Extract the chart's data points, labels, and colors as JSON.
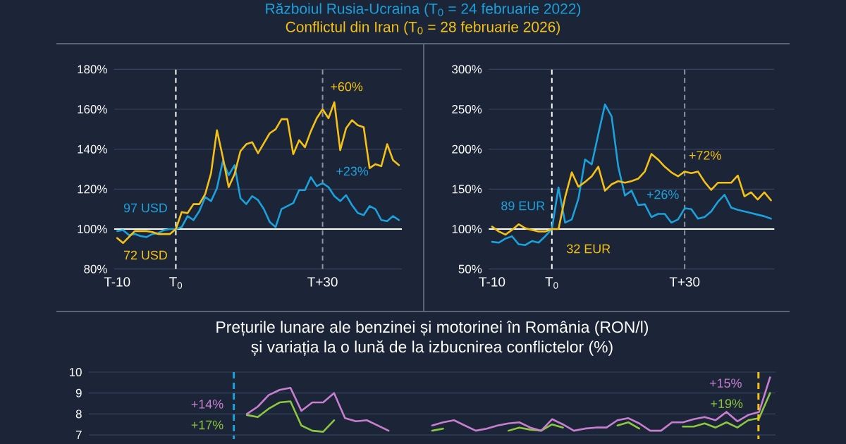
{
  "chart_data": [
    {
      "type": "line",
      "categories": [
        "T-10",
        null,
        null,
        null,
        null,
        null,
        null,
        null,
        null,
        null,
        "T$_{0}$",
        null,
        null,
        null,
        null,
        null,
        null,
        null,
        null,
        null,
        null,
        null,
        null,
        null,
        null,
        null,
        null,
        null,
        null,
        null,
        null,
        null,
        null,
        null,
        null,
        "T+30",
        null,
        null,
        null,
        null,
        null,
        null,
        null,
        null,
        null,
        null,
        null,
        null,
        null
      ],
      "series": [
        {
          "name": "Războiul Rusia-Ucraina (T$_{0}$ = 24 februarie 2022)",
          "color": "#1ba1dc",
          "values": [
            99,
            99.5,
            97,
            97.5,
            96.5,
            96,
            97.5,
            98,
            99.5,
            100,
            100,
            101,
            106.5,
            104.5,
            109,
            116,
            114,
            120.5,
            134,
            127,
            132,
            115.5,
            112.5,
            116.5,
            114.5,
            110,
            103.5,
            101,
            110,
            111.5,
            113,
            119.5,
            119.5,
            126,
            121.5,
            123,
            121,
            116.5,
            114,
            117,
            112,
            108,
            107,
            111.5,
            110,
            104.5,
            104,
            106.5,
            104.5
          ]
        },
        {
          "name": "Conflictul din Iran (T$_{0}$ = 28 februarie 2026)",
          "color": "#f5c116",
          "values": [
            95.5,
            93,
            96,
            99,
            99,
            99,
            98.5,
            97.5,
            97.5,
            97.5,
            100,
            108.5,
            108,
            112.5,
            112.5,
            117.5,
            128,
            149.5,
            136,
            121,
            127.5,
            139,
            142.5,
            143.5,
            138,
            143,
            148,
            150,
            155,
            155,
            137.5,
            144.5,
            141,
            149,
            155.5,
            160,
            155.5,
            163.5,
            139.5,
            150.5,
            154.5,
            152,
            151,
            130.5,
            132.5,
            131.5,
            142.5,
            134.5,
            132
          ]
        }
      ],
      "ylim": [
        80,
        180
      ],
      "yticks": [
        {
          "value": 80,
          "label": "80%"
        },
        {
          "value": 100,
          "label": "100%"
        },
        {
          "value": 120,
          "label": "120%"
        },
        {
          "value": 140,
          "label": "140%"
        },
        {
          "value": 160,
          "label": "160%"
        },
        {
          "value": 180,
          "label": "180%"
        }
      ],
      "grid": "y",
      "legend": "top",
      "ref_lines": [
        {
          "axis": "y",
          "value": 100,
          "color": "#ffffff"
        },
        {
          "axis": "x",
          "value": "T$_{0}$",
          "color": "#ffffff",
          "line_style": "dashed"
        },
        {
          "axis": "x",
          "value": "T+30",
          "color": "#8c94a3",
          "line_style": "dashed"
        }
      ],
      "annotations": [
        {
          "text": "97 USD",
          "x": "T$_{0}$",
          "y": 100
        },
        {
          "text": "72 USD",
          "x": "T$_{0}$",
          "y": 100
        },
        {
          "text": "+60%",
          "x": "T+30",
          "y": 160
        },
        {
          "text": "+23%",
          "x": "T+30",
          "y": 123
        }
      ]
    },
    {
      "type": "line",
      "categories": [
        "T-10",
        null,
        null,
        null,
        null,
        null,
        null,
        null,
        null,
        "T$_{0}$",
        null,
        null,
        null,
        null,
        null,
        null,
        null,
        null,
        null,
        null,
        null,
        null,
        null,
        null,
        null,
        null,
        null,
        null,
        null,
        "T+30",
        null,
        null,
        null,
        null,
        null,
        null,
        null,
        null,
        null,
        null,
        null,
        null,
        null
      ],
      "series": [
        {
          "color": "#1ba1dc",
          "values": [
            84,
            83,
            88,
            91,
            81,
            80,
            85,
            83,
            91,
            100,
            152,
            108,
            112,
            138,
            187,
            181,
            219,
            256,
            241,
            178,
            142,
            148,
            130,
            131,
            115,
            119,
            119,
            108,
            112,
            126,
            125,
            113,
            115,
            122,
            134,
            143,
            127,
            124,
            122,
            120,
            118,
            116,
            113
          ]
        },
        {
          "color": "#f5c116",
          "values": [
            103,
            97,
            93,
            99,
            106,
            101,
            99,
            97,
            97,
            100,
            100,
            140,
            171,
            153,
            159,
            166,
            178,
            148,
            156,
            160,
            158,
            160,
            163,
            172,
            194,
            187,
            178,
            171,
            166,
            172,
            170,
            172,
            159,
            149,
            158,
            158,
            158,
            167,
            141,
            146,
            137,
            146,
            136
          ]
        }
      ],
      "ylim": [
        50,
        300
      ],
      "yticks": [
        {
          "value": 50,
          "label": "50%"
        },
        {
          "value": 100,
          "label": "100%"
        },
        {
          "value": 150,
          "label": "150%"
        },
        {
          "value": 200,
          "label": "200%"
        },
        {
          "value": 250,
          "label": "250%"
        },
        {
          "value": 300,
          "label": "300%"
        }
      ],
      "grid": "y",
      "ref_lines": [
        {
          "axis": "y",
          "value": 100,
          "color": "#ffffff"
        },
        {
          "axis": "x",
          "value": "T$_{0}$",
          "color": "#ffffff",
          "line_style": "dashed"
        },
        {
          "axis": "x",
          "value": "T+30",
          "color": "#8c94a3",
          "line_style": "dashed"
        }
      ],
      "annotations": [
        {
          "text": "89 EUR",
          "x": "T$_{0}$",
          "y": 100
        },
        {
          "text": "32 EUR",
          "x": "T$_{0}$",
          "y": 100
        },
        {
          "text": "+72%",
          "x": "T+30",
          "y": 172
        },
        {
          "text": "+26%",
          "x": "T+30",
          "y": 126
        }
      ]
    },
    {
      "type": "line",
      "title": "Prețurile lunare ale benzinei și motorinei în România (RON/l)",
      "subtitle": "și variația la o lună de la izbucnirea conflictelor (%)",
      "categories": [
        null,
        null,
        null,
        null,
        null,
        null,
        null,
        null,
        null,
        null,
        null,
        null,
        null,
        null,
        null,
        null,
        null,
        null,
        null,
        null,
        null,
        null,
        null,
        null,
        null,
        null,
        null,
        null,
        null,
        null,
        null,
        null,
        null,
        null,
        null,
        null,
        null,
        null,
        null,
        null,
        null,
        null,
        null,
        null,
        null,
        null,
        null,
        null,
        null,
        null,
        null,
        null,
        null,
        null,
        null,
        null,
        null,
        null,
        null,
        null,
        null,
        null,
        null
      ],
      "series": [
        {
          "color": "#8dc63f",
          "values": [
            null,
            null,
            null,
            null,
            null,
            null,
            null,
            null,
            null,
            null,
            null,
            null,
            null,
            null,
            7.95,
            7.85,
            8.25,
            8.55,
            8.6,
            7.45,
            7.2,
            7.15,
            7.7,
            null,
            null,
            null,
            null,
            null,
            null,
            null,
            null,
            7.2,
            7.3,
            null,
            null,
            null,
            null,
            null,
            7.2,
            7.35,
            7.25,
            7.2,
            7.5,
            7.35,
            null,
            null,
            null,
            null,
            7.45,
            7.6,
            7.3,
            null,
            null,
            null,
            7.4,
            7.4,
            7.55,
            7.35,
            7.6,
            7.35,
            7.7,
            7.8,
            9.0
          ]
        },
        {
          "color": "#c97fd0",
          "values": [
            null,
            null,
            null,
            null,
            null,
            null,
            null,
            null,
            null,
            null,
            null,
            null,
            null,
            null,
            8.0,
            8.35,
            8.9,
            9.15,
            9.25,
            8.15,
            8.55,
            8.55,
            9.0,
            7.8,
            7.65,
            7.7,
            7.45,
            7.2,
            null,
            null,
            null,
            7.45,
            7.6,
            7.7,
            7.45,
            7.2,
            7.3,
            7.45,
            7.55,
            7.6,
            7.35,
            7.2,
            7.75,
            7.5,
            7.2,
            7.3,
            7.35,
            7.35,
            7.7,
            7.8,
            7.55,
            7.2,
            7.2,
            7.6,
            7.6,
            7.75,
            7.85,
            7.7,
            8.1,
            7.65,
            7.95,
            8.1,
            9.75
          ]
        }
      ],
      "ylim": [
        6.8,
        10
      ],
      "yticks": [
        7,
        8,
        9,
        10
      ],
      "grid": "y",
      "tick_labels": "y",
      "annotations": [
        "+14%",
        "+17%",
        "+15%",
        "+19%"
      ]
    }
  ]
}
